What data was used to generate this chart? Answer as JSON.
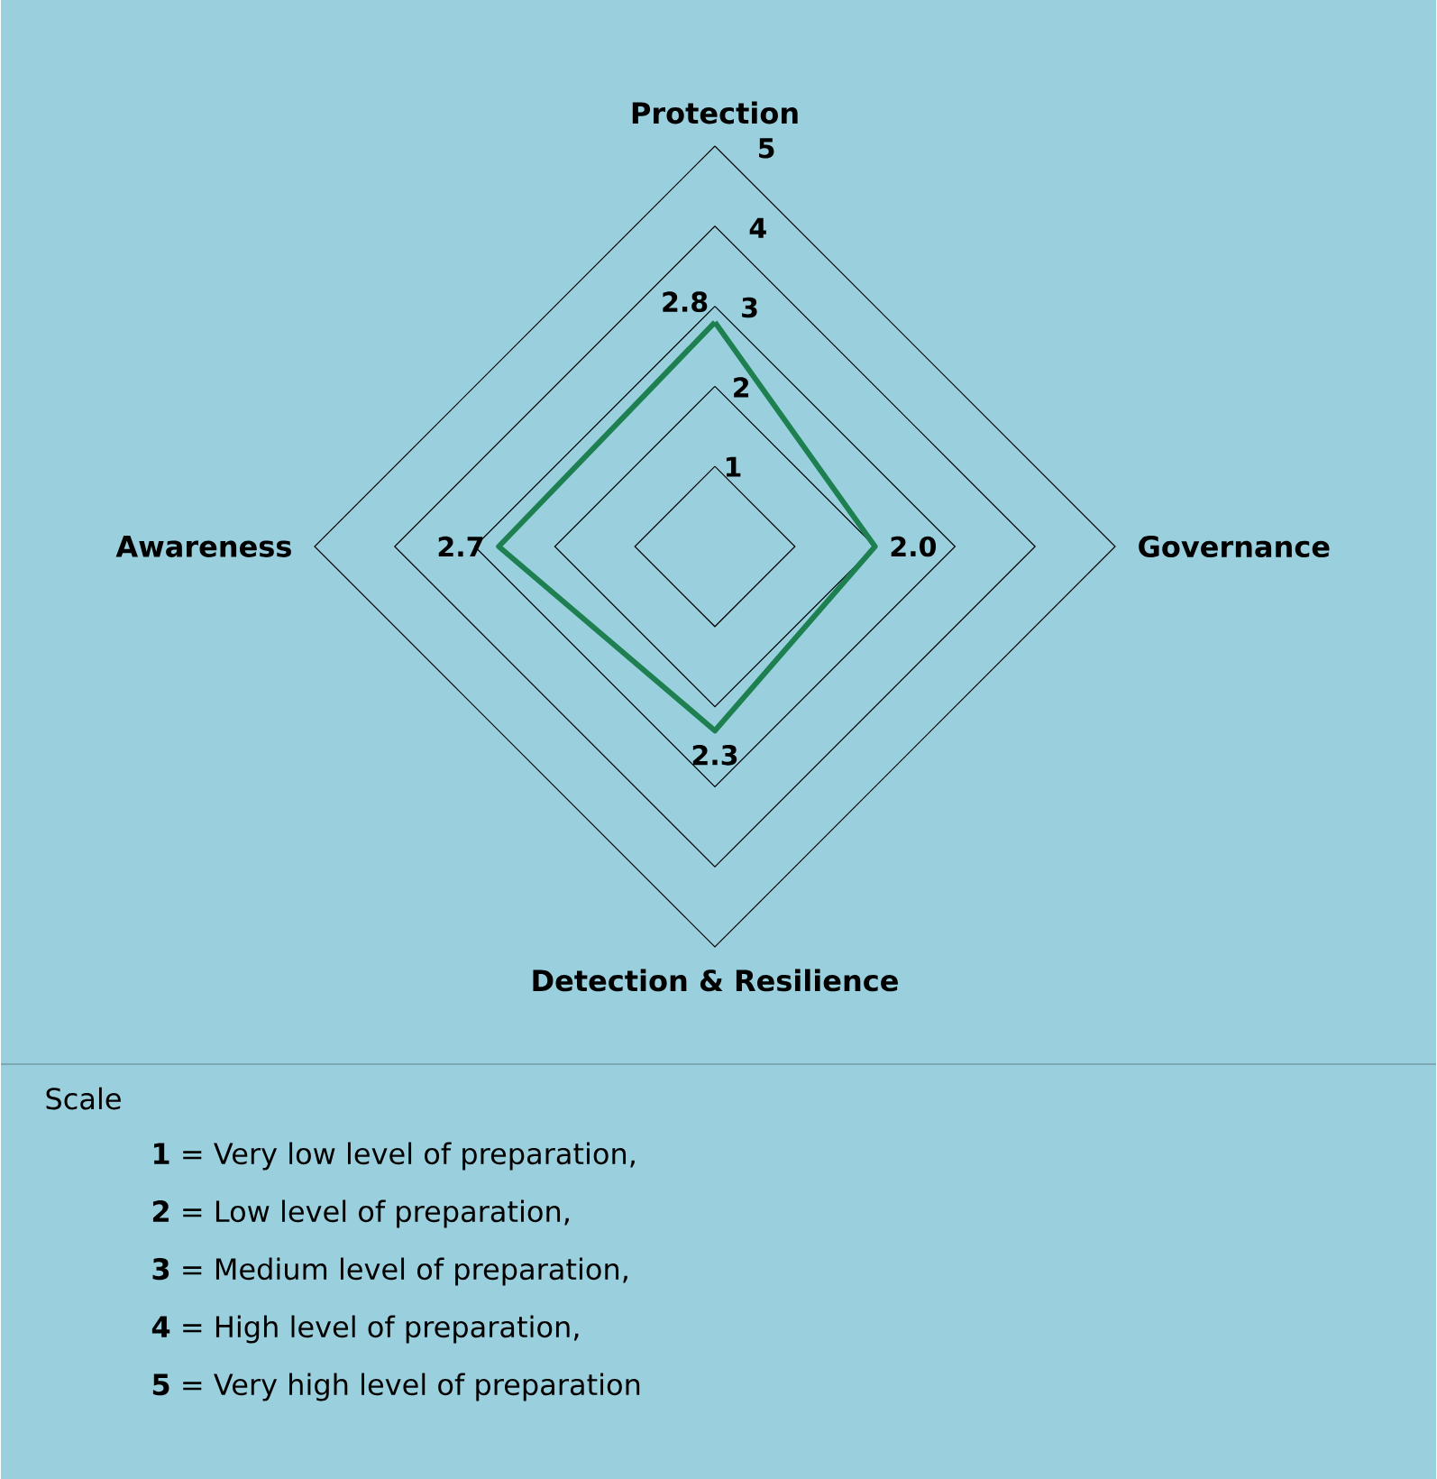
{
  "chart_data": {
    "type": "radar",
    "categories": [
      "Protection",
      "Governance",
      "Detection & Resilience",
      "Awareness"
    ],
    "series": [
      {
        "color": "#1e8050",
        "values": [
          2.8,
          2.0,
          2.3,
          2.7
        ],
        "value_labels": [
          "2.8",
          "2.0",
          "2.3",
          "2.7"
        ]
      }
    ],
    "ylim": [
      0,
      5
    ],
    "yticks": [
      1,
      2,
      3,
      4,
      5
    ],
    "annotations": [
      "Scale",
      "**1** = Very low level of preparation,",
      "**2** = Low level of preparation,",
      "**3** = Medium level of preparation,",
      "**4** = High level of preparation,",
      "**5** = Very high level of preparation"
    ]
  }
}
